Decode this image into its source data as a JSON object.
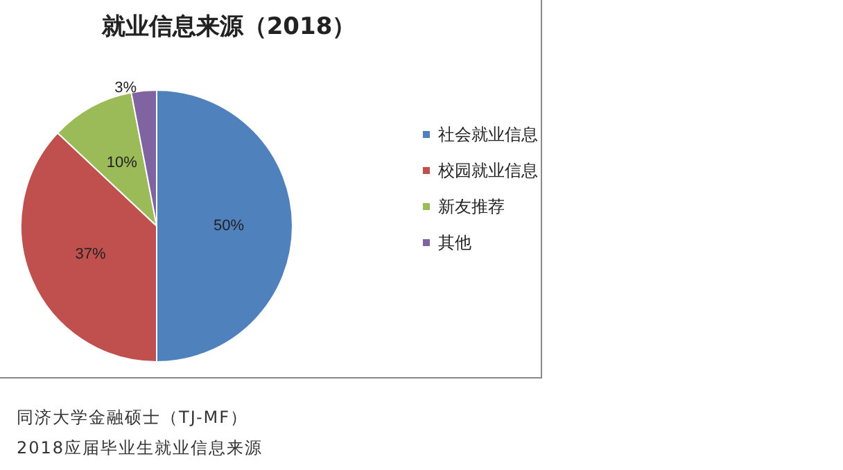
{
  "chart_data": {
    "type": "pie",
    "title": "就业信息来源（2018）",
    "categories": [
      "社会就业信息",
      "校园就业信息",
      "新友推荐",
      "其他"
    ],
    "values": [
      50,
      37,
      10,
      3
    ],
    "colors": [
      "#4f81bd",
      "#c0504d",
      "#9bbb59",
      "#8064a2"
    ],
    "value_labels": [
      "50%",
      "37%",
      "10%",
      "3%"
    ],
    "legend": "right",
    "annotations": [
      "同济大学金融硕士（TJ-MF）",
      "2018应届毕业生就业信息来源"
    ]
  }
}
